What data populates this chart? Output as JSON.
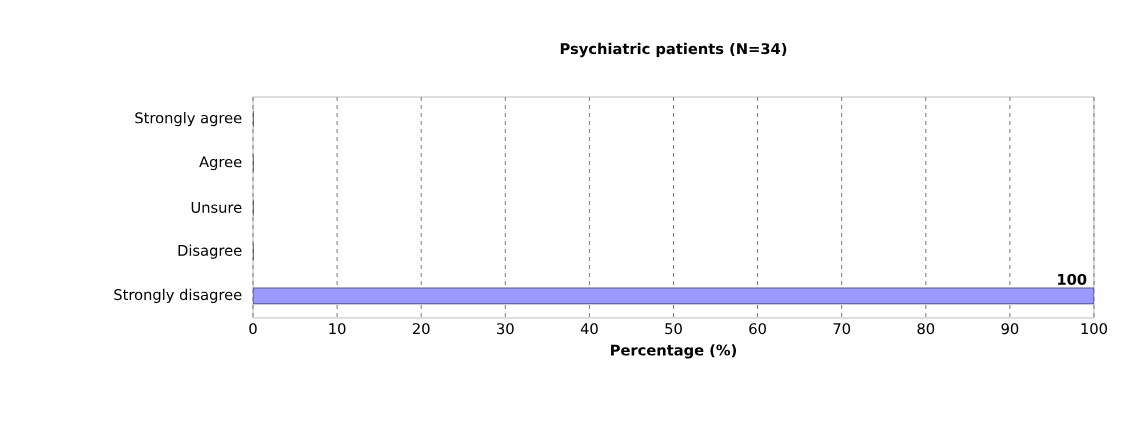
{
  "chart_data": {
    "type": "bar",
    "orientation": "horizontal",
    "title": "Psychiatric patients (N=34)",
    "xlabel": "Percentage (%)",
    "categories": [
      "Strongly agree",
      "Agree",
      "Unsure",
      "Disagree",
      "Strongly disagree"
    ],
    "values": [
      0,
      0,
      0,
      0,
      100
    ],
    "color": "#9999ff",
    "value_labels": [
      null,
      null,
      null,
      null,
      "100"
    ],
    "xlim": [
      0,
      100
    ],
    "xticks": [
      0,
      10,
      20,
      30,
      40,
      50,
      60,
      70,
      80,
      90,
      100
    ],
    "grid": "x"
  }
}
